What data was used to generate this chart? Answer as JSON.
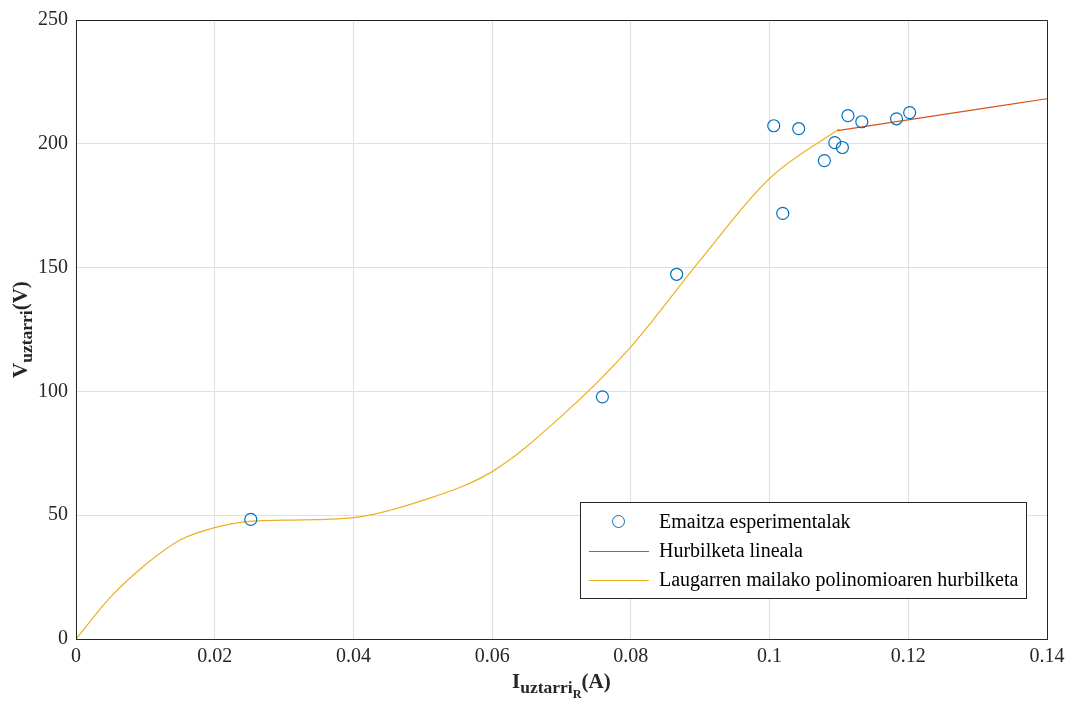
{
  "chart_data": {
    "type": "scatter",
    "xlabel": "I$_{uztarri}$$_{R}$(A)",
    "ylabel": "V$_{uztarri}$(V)",
    "xlim": [
      0,
      0.14
    ],
    "xticks": [
      0,
      0.02,
      0.04,
      0.06,
      0.08,
      0.1,
      0.12,
      0.14
    ],
    "ylim": [
      0,
      250
    ],
    "yticks": [
      0,
      50,
      100,
      150,
      200,
      250
    ],
    "grid": true,
    "legend": "bottom right",
    "series": [
      {
        "name": "Emaitza esperimentalak",
        "marker": "circle",
        "color": "#0072bd",
        "x": [
          0.0252,
          0.0759,
          0.0866,
          0.1006,
          0.1019,
          0.1042,
          0.1079,
          0.1094,
          0.1105,
          0.1113,
          0.1133,
          0.1183,
          0.1202
        ],
        "values": [
          48.3,
          97.8,
          147.3,
          207.3,
          171.9,
          206.1,
          193.2,
          200.5,
          198.5,
          211.4,
          208.9,
          210.1,
          212.6
        ]
      },
      {
        "name": "Hurbilketa lineala",
        "type": "line",
        "marker": "none",
        "color": "#d95319",
        "x": [
          0.1098,
          0.14
        ],
        "values": [
          205.3,
          218.2
        ]
      },
      {
        "name": "Laugarren mailako polinomioaren hurbilketa",
        "type": "line",
        "marker": "none",
        "color": "#edb120",
        "x": [
          0,
          0.005,
          0.01,
          0.015,
          0.02,
          0.025,
          0.03,
          0.04,
          0.05,
          0.06,
          0.07,
          0.08,
          0.09,
          0.1,
          0.11
        ],
        "values": [
          0,
          17,
          30,
          40,
          45,
          47.5,
          48,
          49,
          56,
          67.6,
          90,
          118,
          153,
          186,
          206
        ]
      }
    ]
  }
}
